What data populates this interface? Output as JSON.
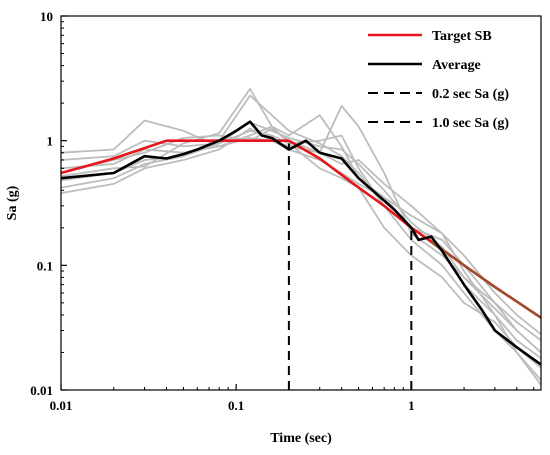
{
  "chart_data": {
    "type": "line",
    "title": "",
    "xlabel": "Time (sec)",
    "ylabel": "Sa (g)",
    "xscale": "log",
    "yscale": "log",
    "xlim": [
      0.01,
      5.5
    ],
    "ylim": [
      0.01,
      10
    ],
    "x_ticks": [
      {
        "value": 0.01,
        "label": "0.01"
      },
      {
        "value": 0.1,
        "label": "0.1"
      },
      {
        "value": 1,
        "label": "1"
      }
    ],
    "y_ticks": [
      {
        "value": 0.01,
        "label": "0.01"
      },
      {
        "value": 0.1,
        "label": "0.1"
      },
      {
        "value": 1,
        "label": "1"
      },
      {
        "value": 10,
        "label": "10"
      }
    ],
    "grid": false,
    "legend": {
      "position": "top-right",
      "entries": [
        {
          "label": "Target SB",
          "color": "#e8141c",
          "dash": "solid"
        },
        {
          "label": "Average",
          "color": "#000000",
          "dash": "solid"
        },
        {
          "label": "0.2 sec Sa (g)",
          "color": "#000000",
          "dash": "dashed"
        },
        {
          "label": "1.0 sec Sa (g)",
          "color": "#000000",
          "dash": "dashed"
        }
      ]
    },
    "vertical_markers": [
      {
        "x": 0.2,
        "y": 0.95
      },
      {
        "x": 1.0,
        "y": 0.2
      }
    ],
    "target": {
      "color": "#e8141c",
      "x": [
        0.01,
        0.02,
        0.04,
        0.06,
        0.1,
        0.2,
        0.3,
        0.5,
        0.7,
        1.0,
        1.3,
        2.0,
        3.0,
        5.5
      ],
      "y": [
        0.55,
        0.72,
        1.0,
        1.0,
        1.0,
        1.0,
        0.72,
        0.42,
        0.3,
        0.2,
        0.155,
        0.1,
        0.067,
        0.038
      ]
    },
    "target_overlay": {
      "color": "#9a4f2c",
      "x": [
        1.3,
        2.0,
        3.0,
        5.5
      ],
      "y": [
        0.155,
        0.1,
        0.067,
        0.038
      ]
    },
    "average": {
      "color": "#000000",
      "x": [
        0.01,
        0.02,
        0.03,
        0.04,
        0.05,
        0.06,
        0.08,
        0.1,
        0.12,
        0.14,
        0.16,
        0.2,
        0.25,
        0.3,
        0.4,
        0.5,
        0.6,
        0.7,
        0.8,
        1.0,
        1.1,
        1.3,
        1.5,
        2.0,
        2.5,
        3.0,
        4.0,
        5.5
      ],
      "y": [
        0.5,
        0.55,
        0.75,
        0.72,
        0.78,
        0.85,
        1.0,
        1.2,
        1.42,
        1.1,
        1.05,
        0.85,
        1.0,
        0.8,
        0.72,
        0.5,
        0.4,
        0.33,
        0.28,
        0.2,
        0.16,
        0.17,
        0.13,
        0.07,
        0.045,
        0.03,
        0.022,
        0.016
      ]
    },
    "records": {
      "color": "#bdbdbd",
      "series": [
        {
          "x": [
            0.01,
            0.02,
            0.03,
            0.05,
            0.08,
            0.12,
            0.16,
            0.2,
            0.3,
            0.4,
            0.5,
            0.7,
            1.0,
            1.5,
            2.0,
            3.0,
            4.0,
            5.5
          ],
          "y": [
            0.42,
            0.5,
            0.65,
            0.75,
            0.95,
            1.4,
            1.2,
            1.05,
            0.9,
            0.85,
            0.65,
            0.4,
            0.22,
            0.14,
            0.08,
            0.045,
            0.03,
            0.02
          ]
        },
        {
          "x": [
            0.01,
            0.02,
            0.03,
            0.05,
            0.08,
            0.12,
            0.16,
            0.2,
            0.3,
            0.4,
            0.5,
            0.7,
            1.0,
            1.5,
            2.0,
            3.0,
            4.0,
            5.5
          ],
          "y": [
            0.6,
            0.65,
            0.85,
            0.8,
            0.9,
            1.1,
            1.3,
            0.95,
            1.0,
            1.1,
            0.6,
            0.3,
            0.2,
            0.16,
            0.1,
            0.05,
            0.035,
            0.025
          ]
        },
        {
          "x": [
            0.01,
            0.02,
            0.03,
            0.05,
            0.08,
            0.12,
            0.16,
            0.2,
            0.3,
            0.4,
            0.5,
            0.7,
            1.0,
            1.5,
            2.0,
            3.0,
            4.0,
            5.5
          ],
          "y": [
            0.38,
            0.45,
            0.6,
            0.7,
            0.85,
            1.25,
            1.0,
            0.85,
            0.7,
            0.55,
            0.45,
            0.35,
            0.25,
            0.18,
            0.12,
            0.06,
            0.04,
            0.028
          ]
        },
        {
          "x": [
            0.01,
            0.02,
            0.03,
            0.05,
            0.08,
            0.12,
            0.16,
            0.2,
            0.3,
            0.4,
            0.5,
            0.7,
            1.0,
            1.5,
            2.0,
            3.0,
            4.0,
            5.5
          ],
          "y": [
            0.7,
            0.75,
            1.0,
            0.9,
            0.95,
            1.2,
            1.1,
            0.95,
            0.6,
            0.5,
            0.42,
            0.2,
            0.12,
            0.08,
            0.05,
            0.035,
            0.022,
            0.015
          ]
        },
        {
          "x": [
            0.01,
            0.02,
            0.03,
            0.05,
            0.08,
            0.12,
            0.16,
            0.2,
            0.3,
            0.4,
            0.5,
            0.7,
            1.0,
            1.5,
            2.0,
            3.0,
            4.0,
            5.5
          ],
          "y": [
            0.55,
            0.7,
            0.8,
            1.05,
            1.1,
            1.0,
            1.25,
            1.0,
            0.8,
            0.65,
            0.7,
            0.45,
            0.3,
            0.18,
            0.09,
            0.04,
            0.025,
            0.018
          ]
        },
        {
          "x": [
            0.01,
            0.02,
            0.03,
            0.05,
            0.08,
            0.12,
            0.16,
            0.2,
            0.3,
            0.4,
            0.5,
            0.7,
            1.0,
            1.5,
            2.0,
            3.0,
            4.0,
            5.5
          ],
          "y": [
            0.8,
            0.85,
            1.45,
            1.2,
            0.9,
            1.05,
            1.0,
            0.9,
            0.8,
            1.9,
            1.3,
            0.55,
            0.18,
            0.12,
            0.08,
            0.05,
            0.03,
            0.02
          ]
        },
        {
          "x": [
            0.01,
            0.02,
            0.03,
            0.05,
            0.08,
            0.12,
            0.16,
            0.2,
            0.3,
            0.4,
            0.5,
            0.7,
            1.0,
            1.5,
            2.0,
            3.0,
            4.0,
            5.5
          ],
          "y": [
            0.48,
            0.55,
            0.7,
            0.75,
            1.0,
            2.3,
            1.6,
            1.2,
            0.95,
            0.75,
            0.55,
            0.3,
            0.16,
            0.1,
            0.06,
            0.03,
            0.02,
            0.012
          ]
        },
        {
          "x": [
            0.01,
            0.02,
            0.03,
            0.05,
            0.08,
            0.12,
            0.16,
            0.2,
            0.3,
            0.4,
            0.5,
            0.7,
            1.0,
            1.5,
            2.0,
            3.0,
            4.0,
            5.5
          ],
          "y": [
            0.52,
            0.6,
            0.62,
            0.95,
            1.15,
            2.6,
            1.3,
            1.1,
            1.6,
            0.9,
            0.5,
            0.35,
            0.2,
            0.13,
            0.07,
            0.04,
            0.02,
            0.011
          ]
        }
      ]
    }
  }
}
